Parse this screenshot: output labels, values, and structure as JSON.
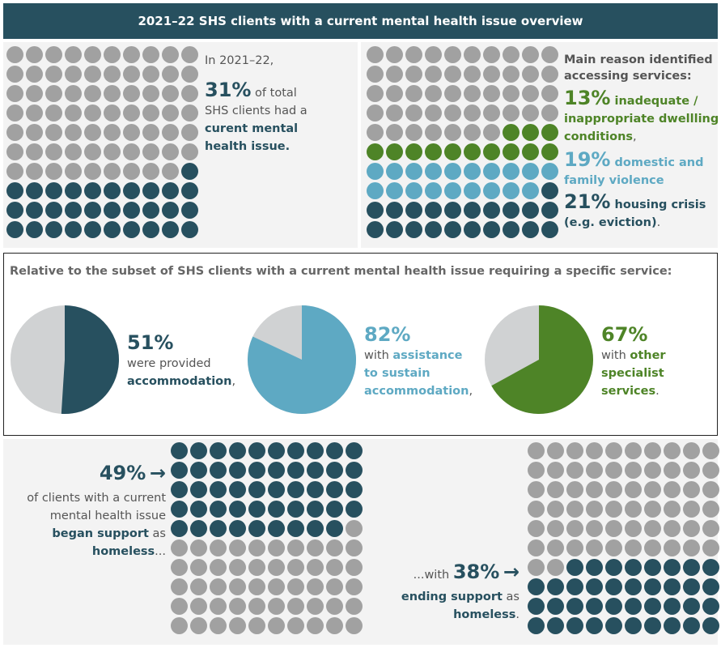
{
  "title": "2021–22 SHS clients with a current mental health issue overview",
  "colors": {
    "dark": "#27505f",
    "grey": "#a1a1a1",
    "green": "#4e8427",
    "blue": "#5ea9c3",
    "light_grey": "#d0d2d3"
  },
  "panel1": {
    "intro": "In 2021–22,",
    "pct": "31%",
    "line1": " of total",
    "line2": "SHS clients had a",
    "bold1": "curent mental",
    "bold2": "health issue.",
    "waffle_value": 31
  },
  "panel2": {
    "heading1": "Main reason identified",
    "heading2": "accessing services:",
    "r1_pct": "13%",
    "r1_a": " inadequate /",
    "r1_b": "inappropriate dwellling",
    "r1_c": "conditions",
    "r1_end": ",",
    "r2_pct": "19%",
    "r2_a": " domestic and",
    "r2_b": "family violence",
    "r3_pct": "21%",
    "r3_a": " housing crisis",
    "r3_b": "(e.g. eviction)",
    "r3_end": ".",
    "waffle": {
      "inadequate_dwelling": 13,
      "domestic_family_violence": 19,
      "housing_crisis": 21
    }
  },
  "middle": {
    "heading": "Relative to the subset of SHS clients with a current mental health issue requiring a specific service:",
    "pie1": {
      "pct": "51%",
      "l1": "were provided",
      "l2": "accommodation",
      "l2_end": ",",
      "value": 51
    },
    "pie2": {
      "pct": "82%",
      "l1": "with ",
      "l1b": "assistance",
      "l2": "to sustain",
      "l3": "accommodation",
      "l3_end": ",",
      "value": 82
    },
    "pie3": {
      "pct": "67%",
      "l1": "with ",
      "l1b": "other",
      "l2": "specialist",
      "l3": "services",
      "l3_end": ".",
      "value": 67
    }
  },
  "bottom": {
    "left_pct": "49%",
    "left_arrow": "→",
    "left_l1": "of clients with a current",
    "left_l2": "mental health issue",
    "left_l3b": "began support",
    "left_l3": " as",
    "left_l4b": "homeless",
    "left_l4": "...",
    "right_pre": "...with ",
    "right_pct": "38%",
    "right_arrow": "→",
    "right_l2b": "ending support",
    "right_l2": " as",
    "right_l3b": "homeless",
    "right_l3": ".",
    "waffle_begin": 49,
    "waffle_end": 38
  },
  "chart_data": [
    {
      "type": "waffle",
      "title": "",
      "series": [
        {
          "name": "curent mental health issue",
          "value": 31
        }
      ],
      "total": 100
    },
    {
      "type": "waffle",
      "series": [
        {
          "name": "inadequate / inappropriate dwellling conditions",
          "value": 13
        },
        {
          "name": "domestic and family violence",
          "value": 19
        },
        {
          "name": "housing crisis (e.g. eviction)",
          "value": 21
        }
      ],
      "total": 100
    },
    {
      "type": "pie",
      "series": [
        {
          "name": "accommodation",
          "value": 51
        }
      ]
    },
    {
      "type": "pie",
      "series": [
        {
          "name": "assistance to sustain accommodation",
          "value": 82
        }
      ]
    },
    {
      "type": "pie",
      "series": [
        {
          "name": "other specialist services",
          "value": 67
        }
      ]
    },
    {
      "type": "waffle",
      "series": [
        {
          "name": "began support as homeless",
          "value": 49
        }
      ],
      "total": 100
    },
    {
      "type": "waffle",
      "series": [
        {
          "name": "ending support as homeless",
          "value": 38
        }
      ],
      "total": 100
    }
  ]
}
